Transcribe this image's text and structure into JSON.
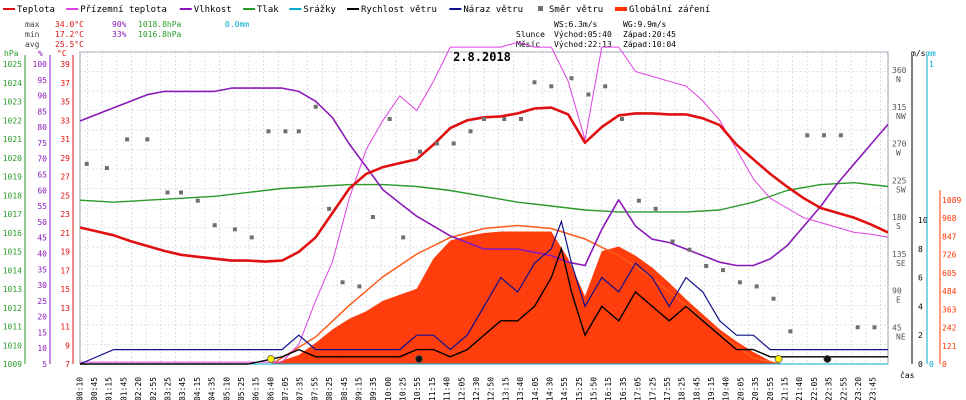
{
  "chart_data": {
    "type": "line",
    "title": "2.8.2018",
    "legend": [
      {
        "label": "Teplota",
        "color": "#e01010",
        "kind": "line"
      },
      {
        "label": "Přízemní teplota",
        "color": "#e040e0",
        "kind": "line"
      },
      {
        "label": "Vlhkost",
        "color": "#8a1ab8",
        "kind": "line"
      },
      {
        "label": "Tlak",
        "color": "#2a9a2a",
        "kind": "line"
      },
      {
        "label": "Srážky",
        "color": "#00aacc",
        "kind": "line"
      },
      {
        "label": "Rychlost větru",
        "color": "#000000",
        "kind": "line"
      },
      {
        "label": "Náraz větru",
        "color": "#10108a",
        "kind": "line"
      },
      {
        "label": "Směr větru",
        "color": "#707070",
        "kind": "dot"
      },
      {
        "label": "Globální záření",
        "color": "#ff3300",
        "kind": "area"
      }
    ],
    "stats": {
      "max_label": "max",
      "max_temp": "34.0°C",
      "max_hum": "90%",
      "max_press": "1018.8hPa",
      "rain": "0.0mm",
      "min_label": "min",
      "min_temp": "17.2°C",
      "min_hum": "33%",
      "min_press": "1016.8hPa",
      "avg_label": "avg",
      "avg_temp": "25.5°C"
    },
    "astro": {
      "ws": "WS:6.3m/s",
      "wg": "WG:9.9m/s",
      "sun_label": "Slunce",
      "sun_rise": "Východ:05:40",
      "sun_set": "Západ:20:45",
      "moon_label": "Měsíc",
      "moon_rise": "Východ:22:13",
      "moon_set": "Západ:10:04"
    },
    "axes": {
      "hpa": {
        "label": "hPa",
        "ticks": [
          1025,
          1024,
          1023,
          1022,
          1021,
          1020,
          1019,
          1018,
          1017,
          1016,
          1015,
          1014,
          1013,
          1012,
          1011,
          1010,
          1009
        ],
        "color": "#2a9a2a"
      },
      "pct": {
        "label": "%",
        "ticks": [
          100,
          95,
          90,
          85,
          80,
          75,
          70,
          65,
          60,
          55,
          50,
          45,
          40,
          35,
          30,
          25,
          20,
          15,
          10,
          5
        ],
        "color": "#8a1ab8"
      },
      "temp": {
        "label": "°C",
        "ticks": [
          39,
          37,
          35,
          33,
          31,
          29,
          27,
          25,
          23,
          21,
          19,
          17,
          15,
          13,
          11,
          9,
          7
        ],
        "color": "#e01010"
      },
      "ms": {
        "label": "m/s",
        "ticks": [
          10,
          8,
          6,
          4,
          2,
          0
        ],
        "color": "#000000"
      },
      "mm": {
        "label": "mm",
        "ticks": [
          1,
          0
        ],
        "color": "#00aacc"
      },
      "wm2": {
        "label": "W/m²",
        "ticks": [
          1089,
          968,
          847,
          726,
          605,
          484,
          363,
          242,
          121,
          0
        ],
        "color": "#ff3300"
      },
      "dir": {
        "ticks": [
          {
            "deg": "360",
            "name": "N"
          },
          {
            "deg": "315",
            "name": "NW"
          },
          {
            "deg": "270",
            "name": "W"
          },
          {
            "deg": "225",
            "name": "SW"
          },
          {
            "deg": "180",
            "name": "S"
          },
          {
            "deg": "135",
            "name": "SE"
          },
          {
            "deg": "90",
            "name": "E"
          },
          {
            "deg": "45",
            "name": "NE"
          }
        ]
      },
      "x_label": "čas",
      "x_ticks": [
        "00:10",
        "00:45",
        "01:15",
        "01:45",
        "02:20",
        "02:55",
        "03:25",
        "03:45",
        "04:15",
        "04:35",
        "05:10",
        "05:25",
        "06:15",
        "06:40",
        "07:05",
        "07:35",
        "07:55",
        "08:25",
        "08:45",
        "09:15",
        "09:35",
        "10:00",
        "10:25",
        "10:55",
        "11:15",
        "11:40",
        "12:05",
        "12:30",
        "12:50",
        "13:15",
        "13:40",
        "14:05",
        "14:30",
        "14:55",
        "15:25",
        "15:50",
        "16:15",
        "16:35",
        "17:05",
        "17:25",
        "17:55",
        "18:25",
        "18:45",
        "19:15",
        "19:40",
        "20:05",
        "20:35",
        "20:55",
        "21:15",
        "21:40",
        "22:05",
        "22:35",
        "22:55",
        "23:20",
        "23:45"
      ]
    },
    "series": [
      {
        "name": "Teplota",
        "unit": "°C",
        "color": "#e01010",
        "x": [
          0,
          0.5,
          1,
          1.5,
          2,
          2.5,
          3,
          3.5,
          4,
          4.5,
          5,
          5.5,
          6,
          6.5,
          7,
          7.5,
          8,
          8.5,
          9,
          9.5,
          10,
          10.5,
          11,
          11.5,
          12,
          12.5,
          13,
          13.5,
          14,
          14.5,
          15,
          15.5,
          16,
          16.5,
          17,
          17.5,
          18,
          18.5,
          19,
          19.5,
          20,
          20.5,
          21,
          21.5,
          22,
          22.5,
          23,
          23.5,
          24
        ],
        "values": [
          21,
          20.6,
          20.2,
          19.6,
          19.1,
          18.6,
          18.2,
          18.0,
          17.8,
          17.6,
          17.6,
          17.5,
          17.6,
          18.5,
          20.0,
          22.5,
          25.0,
          26.5,
          27.2,
          27.6,
          28.0,
          29.5,
          31.2,
          32.0,
          32.3,
          32.4,
          32.7,
          33.2,
          33.3,
          32.6,
          29.7,
          31.3,
          32.5,
          32.7,
          32.7,
          32.6,
          32.6,
          32.2,
          31.5,
          29.5,
          28.0,
          26.5,
          25.2,
          24.0,
          23.0,
          22.5,
          22.0,
          21.3,
          20.5
        ]
      },
      {
        "name": "Přízemní teplota",
        "unit": "°C",
        "color": "#e040e0",
        "x": [
          0,
          0.5,
          1,
          1.5,
          2,
          2.5,
          3,
          3.5,
          4,
          4.5,
          5,
          5.5,
          6,
          6.5,
          7,
          7.5,
          8,
          8.5,
          9,
          9.5,
          10,
          10.5,
          11,
          11.5,
          12,
          12.5,
          13,
          13.5,
          14,
          14.5,
          15,
          15.5,
          16,
          16.5,
          17,
          17.5,
          18,
          18.5,
          19,
          19.5,
          20,
          20.5,
          21,
          21.5,
          22,
          22.5,
          23,
          23.5,
          24
        ],
        "values": [
          7.2,
          7.2,
          7.2,
          7.2,
          7.2,
          7.2,
          7.2,
          7.2,
          7.2,
          7.2,
          7.2,
          7.2,
          7.2,
          9,
          13.5,
          17.5,
          24,
          29,
          32,
          34.5,
          33,
          36,
          39.5,
          39.5,
          39.5,
          39.5,
          40,
          39.5,
          39.5,
          36,
          30,
          39.5,
          39.5,
          37,
          36.5,
          36,
          35.5,
          34,
          32,
          29,
          26,
          24,
          23,
          22,
          21.5,
          21,
          20.5,
          20.3,
          20
        ]
      },
      {
        "name": "Vlhkost",
        "unit": "%",
        "color": "#8a1ab8",
        "x": [
          0,
          0.5,
          1,
          1.5,
          2,
          2.5,
          3,
          3.5,
          4,
          4.5,
          5,
          5.5,
          6,
          6.5,
          7,
          7.5,
          8,
          8.5,
          9,
          9.5,
          10,
          10.5,
          11,
          11.5,
          12,
          12.5,
          13,
          13.5,
          14,
          14.5,
          15,
          15.5,
          16,
          16.5,
          17,
          17.5,
          18,
          18.5,
          19,
          19.5,
          20,
          20.5,
          21,
          21.5,
          22,
          22.5,
          23,
          23.5,
          24
        ],
        "values": [
          79,
          81,
          83,
          85,
          87,
          88,
          88,
          88,
          88,
          89,
          89,
          89,
          89,
          88,
          85,
          80,
          72,
          65,
          58,
          54,
          50,
          47,
          44,
          42,
          40,
          40,
          40,
          39,
          38,
          36,
          35,
          46,
          55,
          47,
          43,
          42,
          40,
          38,
          36,
          35,
          35,
          37,
          41,
          47,
          53,
          60,
          66,
          72,
          78
        ]
      },
      {
        "name": "Tlak",
        "unit": "hPa",
        "color": "#2a9a2a",
        "x": [
          0,
          1,
          2,
          3,
          4,
          5,
          6,
          7,
          8,
          9,
          10,
          11,
          12,
          13,
          14,
          15,
          16,
          17,
          18,
          19,
          20,
          21,
          22,
          23,
          24
        ],
        "values": [
          1017.4,
          1017.3,
          1017.4,
          1017.5,
          1017.6,
          1017.8,
          1018.0,
          1018.1,
          1018.2,
          1018.2,
          1018.1,
          1017.9,
          1017.6,
          1017.3,
          1017.1,
          1016.9,
          1016.8,
          1016.8,
          1016.8,
          1016.9,
          1017.3,
          1017.9,
          1018.2,
          1018.3,
          1018.1
        ]
      },
      {
        "name": "Srážky",
        "unit": "mm",
        "color": "#00aacc",
        "x": [
          0,
          24
        ],
        "values": [
          0,
          0
        ]
      },
      {
        "name": "Rychlost větru",
        "unit": "m/s",
        "color": "#000000",
        "x": [
          0,
          1,
          2,
          3,
          4,
          5,
          6,
          6.5,
          7,
          8,
          9,
          9.5,
          10,
          10.5,
          11,
          11.5,
          12,
          12.5,
          13,
          13.5,
          14,
          14.3,
          14.6,
          15,
          15.5,
          16,
          16.5,
          17,
          17.5,
          18,
          18.5,
          19,
          19.5,
          20,
          20.5,
          21,
          22,
          23,
          24
        ],
        "values": [
          0,
          0,
          0,
          0,
          0,
          0,
          0.5,
          1,
          0.5,
          0.5,
          0.5,
          0.5,
          1,
          1,
          0.5,
          1,
          2,
          3,
          3,
          4,
          6,
          8,
          5,
          2,
          4,
          3,
          5,
          4,
          3,
          4,
          3,
          2,
          1,
          1,
          0.5,
          0.5,
          0.5,
          0.5,
          0.5
        ]
      },
      {
        "name": "Náraz větru",
        "unit": "m/s",
        "color": "#10108a",
        "x": [
          0,
          1,
          2,
          3,
          4,
          5,
          6,
          6.5,
          7,
          8,
          9,
          9.5,
          10,
          10.5,
          11,
          11.5,
          12,
          12.5,
          13,
          13.5,
          14,
          14.3,
          14.6,
          15,
          15.5,
          16,
          16.5,
          17,
          17.5,
          18,
          18.5,
          19,
          19.5,
          20,
          20.5,
          21,
          22,
          23,
          24
        ],
        "values": [
          0,
          1,
          1,
          1,
          1,
          1,
          1,
          2,
          1,
          1,
          1,
          1,
          2,
          2,
          1,
          2,
          4,
          6,
          5,
          7,
          8,
          9.9,
          7,
          4,
          6,
          5,
          7,
          6,
          4,
          6,
          5,
          3,
          2,
          2,
          1,
          1,
          1,
          1,
          1
        ]
      },
      {
        "name": "Globální záření",
        "unit": "W/m²",
        "color": "#ff3300",
        "x": [
          5.7,
          6.5,
          7,
          7.5,
          8,
          8.5,
          9,
          9.5,
          10,
          10.5,
          11,
          11.5,
          12,
          12.5,
          13,
          13.5,
          14,
          14.5,
          15,
          15.5,
          16,
          16.5,
          17,
          17.5,
          18,
          18.5,
          19,
          19.5,
          20,
          20.5,
          20.8
        ],
        "values": [
          0,
          60,
          140,
          230,
          300,
          350,
          420,
          460,
          500,
          700,
          820,
          850,
          870,
          880,
          880,
          880,
          880,
          700,
          450,
          750,
          780,
          720,
          640,
          540,
          430,
          330,
          230,
          150,
          80,
          20,
          0
        ]
      },
      {
        "name": "Globální záření (max)",
        "unit": "W/m²",
        "color": "#ff5a1a",
        "x": [
          5.7,
          7,
          8,
          9,
          10,
          11,
          12,
          13,
          14,
          15,
          16,
          17,
          18,
          19,
          20,
          20.8
        ],
        "values": [
          0,
          180,
          390,
          580,
          730,
          840,
          900,
          920,
          900,
          830,
          720,
          570,
          390,
          200,
          40,
          0
        ]
      },
      {
        "name": "Směr větru",
        "unit": "°",
        "x": [
          0.2,
          0.8,
          1.4,
          2.0,
          2.6,
          3.0,
          3.5,
          4.0,
          4.6,
          5.1,
          5.6,
          6.1,
          6.5,
          7.0,
          7.4,
          7.8,
          8.3,
          8.7,
          9.2,
          9.6,
          10.1,
          10.6,
          11.1,
          11.6,
          12.0,
          12.6,
          13.1,
          13.5,
          14.0,
          14.6,
          15.1,
          15.6,
          16.1,
          16.6,
          17.1,
          17.6,
          18.1,
          18.6,
          19.1,
          19.6,
          20.1,
          20.6,
          21.1,
          21.6,
          22.1,
          22.6,
          23.1,
          23.6
        ],
        "values": [
          245,
          240,
          275,
          275,
          210,
          210,
          200,
          170,
          165,
          155,
          285,
          285,
          285,
          315,
          190,
          100,
          95,
          180,
          300,
          155,
          260,
          270,
          270,
          285,
          300,
          300,
          300,
          345,
          340,
          350,
          330,
          340,
          300,
          200,
          190,
          150,
          140,
          120,
          115,
          100,
          95,
          80,
          40,
          280,
          280,
          280,
          45,
          45
        ]
      }
    ],
    "markers": [
      {
        "x": 5.67,
        "kind": "sunrise"
      },
      {
        "x": 20.75,
        "kind": "sunset"
      },
      {
        "x": 22.2,
        "kind": "moonrise"
      },
      {
        "x": 10.07,
        "kind": "moonset"
      }
    ]
  }
}
